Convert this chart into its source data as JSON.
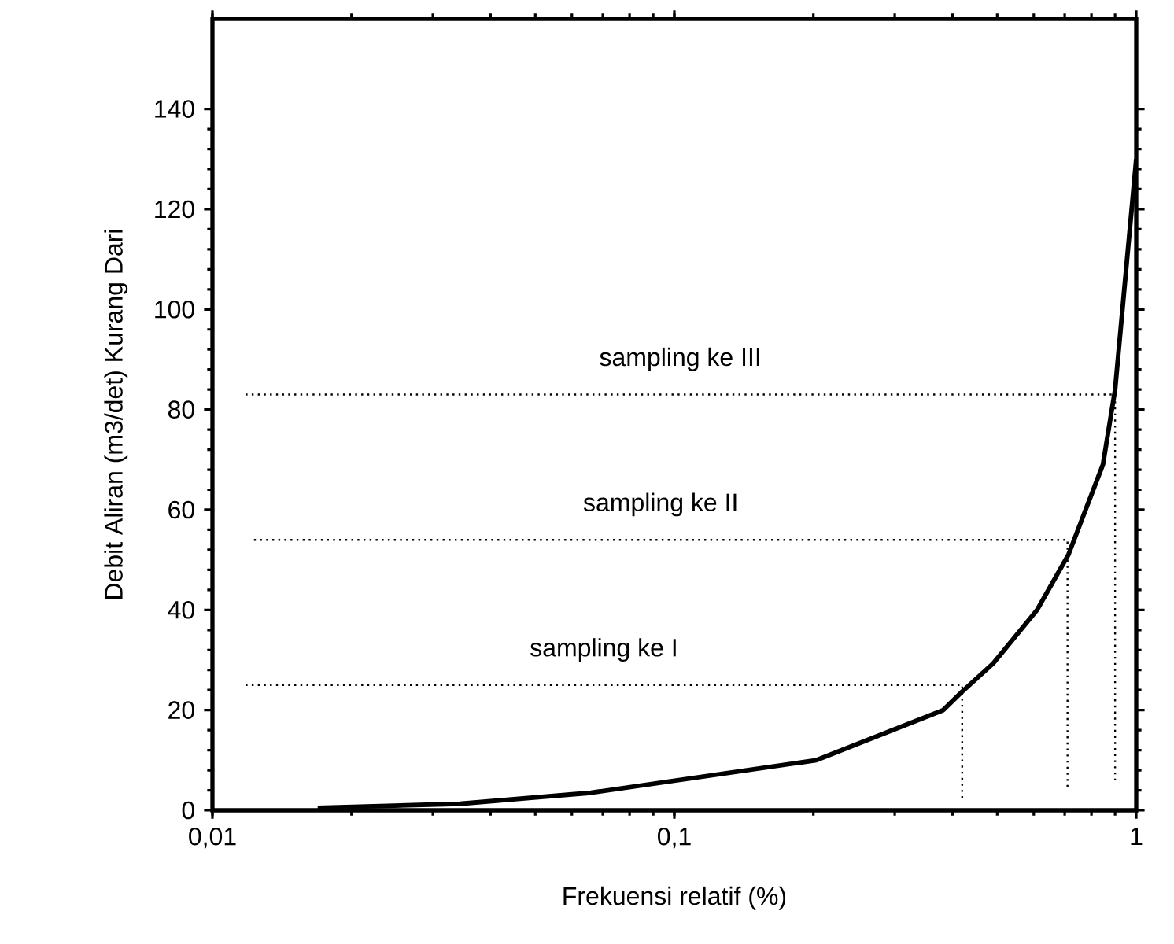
{
  "chart_data": {
    "type": "line",
    "xlabel": "Frekuensi relatif (%)",
    "ylabel": "Debit Aliran (m3/det) Kurang Dari",
    "log": "x",
    "xlim": [
      0.01,
      1
    ],
    "ylim": [
      0,
      158
    ],
    "xticks": [
      {
        "value": 0.01,
        "label": "0,01"
      },
      {
        "value": 0.1,
        "label": "0,1"
      },
      {
        "value": 1,
        "label": "1"
      }
    ],
    "yticks": [
      0,
      20,
      40,
      60,
      80,
      100,
      120,
      140
    ],
    "grid": false,
    "marker": "none",
    "series": [
      {
        "color": "#000000",
        "line_style": "solid",
        "x": [
          0.0169,
          0.0343,
          0.066,
          0.203,
          0.382,
          0.42,
          0.49,
          0.61,
          0.713,
          0.847,
          0.9,
          1
        ],
        "values": [
          0.5,
          1.3,
          3.5,
          10,
          20,
          23.7,
          29.3,
          40,
          51,
          69,
          84,
          130
        ]
      },
      {
        "color": "#000000",
        "line_style": "dotted",
        "x": [
          0.0118,
          0.42,
          0.42
        ],
        "values": [
          25,
          25,
          2.5
        ]
      },
      {
        "color": "#000000",
        "line_style": "dotted",
        "x": [
          0.0123,
          0.71,
          0.71
        ],
        "values": [
          54,
          54,
          4.7
        ]
      },
      {
        "color": "#000000",
        "line_style": "dotted",
        "x": [
          0.0118,
          0.9,
          0.9
        ],
        "values": [
          83,
          83,
          5.7
        ]
      }
    ],
    "annotations": [
      "sampling ke I",
      "sampling ke II",
      "sampling ke III"
    ]
  }
}
